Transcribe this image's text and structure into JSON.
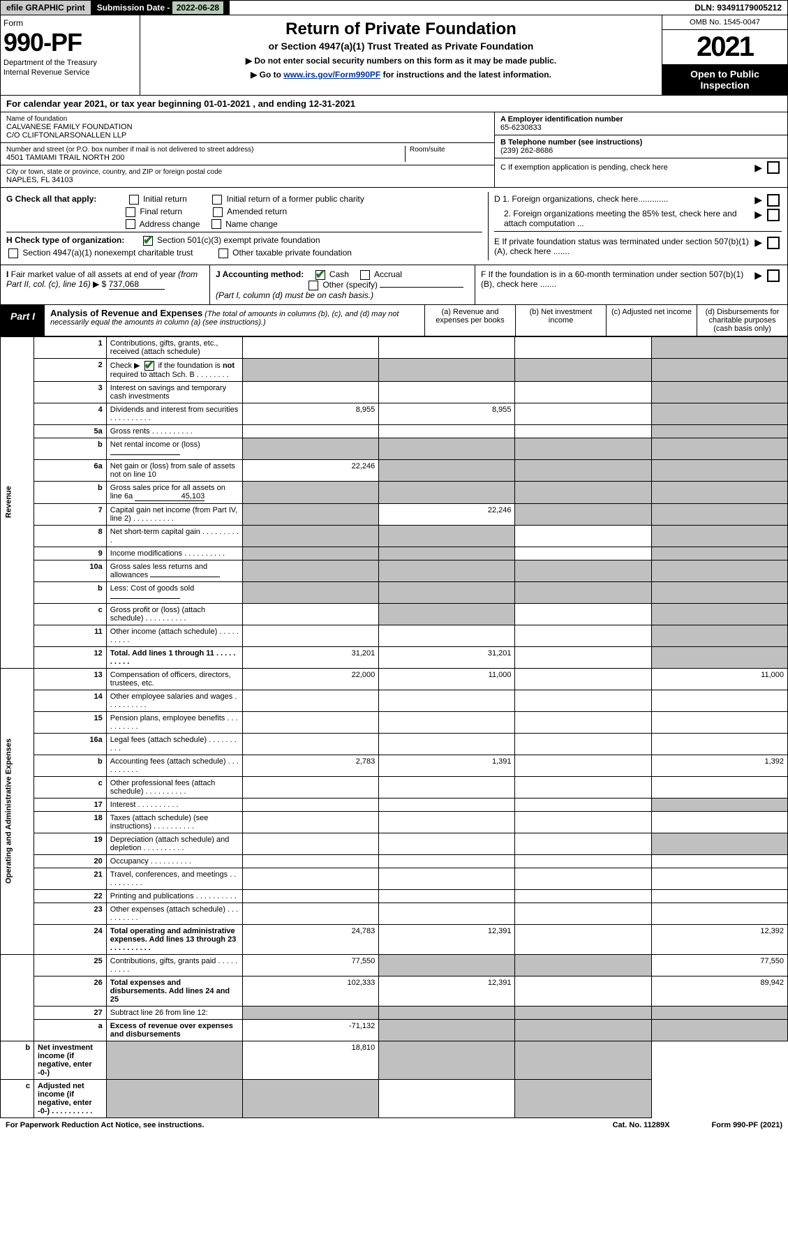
{
  "top": {
    "efile": "efile GRAPHIC print",
    "subdate_label": "Submission Date - ",
    "subdate": "2022-06-28",
    "dln_label": "DLN: ",
    "dln": "93491179005212"
  },
  "header": {
    "form_label": "Form",
    "form_no": "990-PF",
    "dept1": "Department of the Treasury",
    "dept2": "Internal Revenue Service",
    "title1": "Return of Private Foundation",
    "title2": "or Section 4947(a)(1) Trust Treated as Private Foundation",
    "instr1": "▶ Do not enter social security numbers on this form as it may be made public.",
    "instr2_pre": "▶ Go to ",
    "instr2_link": "www.irs.gov/Form990PF",
    "instr2_post": " for instructions and the latest information.",
    "omb": "OMB No. 1545-0047",
    "year": "2021",
    "open1": "Open to Public",
    "open2": "Inspection"
  },
  "calyear": {
    "pre": "For calendar year 2021, or tax year beginning ",
    "begin": "01-01-2021",
    "mid": " , and ending ",
    "end": "12-31-2021"
  },
  "entity": {
    "name_label": "Name of foundation",
    "name1": "CALVANESE FAMILY FOUNDATION",
    "name2": "C/O CLIFTONLARSONALLEN LLP",
    "addr_label": "Number and street (or P.O. box number if mail is not delivered to street address)",
    "addr": "4501 TAMIAMI TRAIL NORTH 200",
    "room_label": "Room/suite",
    "city_label": "City or town, state or province, country, and ZIP or foreign postal code",
    "city": "NAPLES, FL  34103",
    "ein_label": "A Employer identification number",
    "ein": "65-6230833",
    "tel_label": "B Telephone number (see instructions)",
    "tel": "(239) 262-8686",
    "c_label": "C  If exemption application is pending, check here",
    "d1": "D 1. Foreign organizations, check here.............",
    "d2": "2. Foreign organizations meeting the 85% test, check here and attach computation ...",
    "e": "E  If private foundation status was terminated under section 507(b)(1)(A), check here .......",
    "f": "F  If the foundation is in a 60-month termination under section 507(b)(1)(B), check here .......",
    "g_label": "G Check all that apply:",
    "g_initial": "Initial return",
    "g_initial_former": "Initial return of a former public charity",
    "g_final": "Final return",
    "g_amended": "Amended return",
    "g_address": "Address change",
    "g_name": "Name change",
    "h_label": "H Check type of organization:",
    "h_501c3": "Section 501(c)(3) exempt private foundation",
    "h_4947": "Section 4947(a)(1) nonexempt charitable trust",
    "h_other": "Other taxable private foundation",
    "i_label": "I Fair market value of all assets at end of year (from Part II, col. (c), line 16) ▶ $",
    "i_val": "737,068",
    "j_label": "J Accounting method:",
    "j_cash": "Cash",
    "j_accrual": "Accrual",
    "j_other": "Other (specify)",
    "j_note": "(Part I, column (d) must be on cash basis.)"
  },
  "part1": {
    "tab": "Part I",
    "title": "Analysis of Revenue and Expenses",
    "note": " (The total of amounts in columns (b), (c), and (d) may not necessarily equal the amounts in column (a) (see instructions).)",
    "col_a": "(a) Revenue and expenses per books",
    "col_b": "(b) Net investment income",
    "col_c": "(c) Adjusted net income",
    "col_d": "(d) Disbursements for charitable purposes (cash basis only)"
  },
  "sections": {
    "revenue": "Revenue",
    "opadmin": "Operating and Administrative Expenses"
  },
  "rows": [
    {
      "n": "1",
      "d": "Contributions, gifts, grants, etc., received (attach schedule)",
      "a": "",
      "b": "",
      "c": "",
      "dd": "",
      "shade_d": true
    },
    {
      "n": "2",
      "d": "Check ▶ ☑ if the foundation is not required to attach Sch. B",
      "a": "",
      "b": "",
      "c": "",
      "dd": "",
      "shade_a": true,
      "shade_b": true,
      "shade_c": true,
      "shade_d": true,
      "has_check": true
    },
    {
      "n": "3",
      "d": "Interest on savings and temporary cash investments",
      "a": "",
      "b": "",
      "c": "",
      "dd": "",
      "shade_d": true
    },
    {
      "n": "4",
      "d": "Dividends and interest from securities",
      "a": "8,955",
      "b": "8,955",
      "c": "",
      "dd": "",
      "shade_d": true,
      "dots": true
    },
    {
      "n": "5a",
      "d": "Gross rents",
      "a": "",
      "b": "",
      "c": "",
      "dd": "",
      "shade_d": true,
      "dots": true
    },
    {
      "n": "b",
      "d": "Net rental income or (loss)",
      "a": "",
      "b": "",
      "c": "",
      "dd": "",
      "shade_a": true,
      "shade_b": true,
      "shade_c": true,
      "shade_d": true,
      "inline": true
    },
    {
      "n": "6a",
      "d": "Net gain or (loss) from sale of assets not on line 10",
      "a": "22,246",
      "b": "",
      "c": "",
      "dd": "",
      "shade_b": true,
      "shade_c": true,
      "shade_d": true
    },
    {
      "n": "b",
      "d": "Gross sales price for all assets on line 6a",
      "a": "",
      "b": "",
      "c": "",
      "dd": "",
      "shade_a": true,
      "shade_b": true,
      "shade_c": true,
      "shade_d": true,
      "inline": true,
      "inline_val": "45,103"
    },
    {
      "n": "7",
      "d": "Capital gain net income (from Part IV, line 2)",
      "a": "",
      "b": "22,246",
      "c": "",
      "dd": "",
      "shade_a": true,
      "shade_c": true,
      "shade_d": true,
      "dots": true
    },
    {
      "n": "8",
      "d": "Net short-term capital gain",
      "a": "",
      "b": "",
      "c": "",
      "dd": "",
      "shade_a": true,
      "shade_b": true,
      "shade_d": true,
      "dots": true
    },
    {
      "n": "9",
      "d": "Income modifications",
      "a": "",
      "b": "",
      "c": "",
      "dd": "",
      "shade_a": true,
      "shade_b": true,
      "shade_d": true,
      "dots": true
    },
    {
      "n": "10a",
      "d": "Gross sales less returns and allowances",
      "a": "",
      "b": "",
      "c": "",
      "dd": "",
      "shade_a": true,
      "shade_b": true,
      "shade_c": true,
      "shade_d": true,
      "inline": true
    },
    {
      "n": "b",
      "d": "Less: Cost of goods sold",
      "a": "",
      "b": "",
      "c": "",
      "dd": "",
      "shade_a": true,
      "shade_b": true,
      "shade_c": true,
      "shade_d": true,
      "inline": true,
      "dots": true
    },
    {
      "n": "c",
      "d": "Gross profit or (loss) (attach schedule)",
      "a": "",
      "b": "",
      "c": "",
      "dd": "",
      "shade_b": true,
      "shade_d": true,
      "dots": true
    },
    {
      "n": "11",
      "d": "Other income (attach schedule)",
      "a": "",
      "b": "",
      "c": "",
      "dd": "",
      "shade_d": true,
      "dots": true
    },
    {
      "n": "12",
      "d": "Total. Add lines 1 through 11",
      "a": "31,201",
      "b": "31,201",
      "c": "",
      "dd": "",
      "shade_d": true,
      "bold": true,
      "dots": true
    },
    {
      "n": "13",
      "d": "Compensation of officers, directors, trustees, etc.",
      "a": "22,000",
      "b": "11,000",
      "c": "",
      "dd": "11,000"
    },
    {
      "n": "14",
      "d": "Other employee salaries and wages",
      "a": "",
      "b": "",
      "c": "",
      "dd": "",
      "dots": true
    },
    {
      "n": "15",
      "d": "Pension plans, employee benefits",
      "a": "",
      "b": "",
      "c": "",
      "dd": "",
      "dots": true
    },
    {
      "n": "16a",
      "d": "Legal fees (attach schedule)",
      "a": "",
      "b": "",
      "c": "",
      "dd": "",
      "dots": true
    },
    {
      "n": "b",
      "d": "Accounting fees (attach schedule)",
      "a": "2,783",
      "b": "1,391",
      "c": "",
      "dd": "1,392",
      "dots": true
    },
    {
      "n": "c",
      "d": "Other professional fees (attach schedule)",
      "a": "",
      "b": "",
      "c": "",
      "dd": "",
      "dots": true
    },
    {
      "n": "17",
      "d": "Interest",
      "a": "",
      "b": "",
      "c": "",
      "dd": "",
      "shade_d": true,
      "dots": true
    },
    {
      "n": "18",
      "d": "Taxes (attach schedule) (see instructions)",
      "a": "",
      "b": "",
      "c": "",
      "dd": "",
      "dots": true
    },
    {
      "n": "19",
      "d": "Depreciation (attach schedule) and depletion",
      "a": "",
      "b": "",
      "c": "",
      "dd": "",
      "shade_d": true,
      "dots": true
    },
    {
      "n": "20",
      "d": "Occupancy",
      "a": "",
      "b": "",
      "c": "",
      "dd": "",
      "dots": true
    },
    {
      "n": "21",
      "d": "Travel, conferences, and meetings",
      "a": "",
      "b": "",
      "c": "",
      "dd": "",
      "dots": true
    },
    {
      "n": "22",
      "d": "Printing and publications",
      "a": "",
      "b": "",
      "c": "",
      "dd": "",
      "dots": true
    },
    {
      "n": "23",
      "d": "Other expenses (attach schedule)",
      "a": "",
      "b": "",
      "c": "",
      "dd": "",
      "dots": true
    },
    {
      "n": "24",
      "d": "Total operating and administrative expenses. Add lines 13 through 23",
      "a": "24,783",
      "b": "12,391",
      "c": "",
      "dd": "12,392",
      "bold": true,
      "dots": true
    },
    {
      "n": "25",
      "d": "Contributions, gifts, grants paid",
      "a": "77,550",
      "b": "",
      "c": "",
      "dd": "77,550",
      "shade_b": true,
      "shade_c": true,
      "dots": true
    },
    {
      "n": "26",
      "d": "Total expenses and disbursements. Add lines 24 and 25",
      "a": "102,333",
      "b": "12,391",
      "c": "",
      "dd": "89,942",
      "bold": true
    },
    {
      "n": "27",
      "d": "Subtract line 26 from line 12:",
      "a": "",
      "b": "",
      "c": "",
      "dd": "",
      "shade_a": true,
      "shade_b": true,
      "shade_c": true,
      "shade_d": true
    },
    {
      "n": "a",
      "d": "Excess of revenue over expenses and disbursements",
      "a": "-71,132",
      "b": "",
      "c": "",
      "dd": "",
      "shade_b": true,
      "shade_c": true,
      "shade_d": true,
      "bold": true
    },
    {
      "n": "b",
      "d": "Net investment income (if negative, enter -0-)",
      "a": "",
      "b": "18,810",
      "c": "",
      "dd": "",
      "shade_a": true,
      "shade_c": true,
      "shade_d": true,
      "bold": true
    },
    {
      "n": "c",
      "d": "Adjusted net income (if negative, enter -0-)",
      "a": "",
      "b": "",
      "c": "",
      "dd": "",
      "shade_a": true,
      "shade_b": true,
      "shade_d": true,
      "bold": true,
      "dots": true
    }
  ],
  "footer": {
    "left": "For Paperwork Reduction Act Notice, see instructions.",
    "mid": "Cat. No. 11289X",
    "right": "Form 990-PF (2021)"
  }
}
